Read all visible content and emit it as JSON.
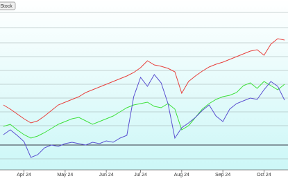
{
  "toolbar": {
    "button": "Stock"
  },
  "chart_data": {
    "type": "line",
    "categories": [
      null,
      null,
      null,
      "Apr 24",
      null,
      null,
      null,
      null,
      null,
      "May 24",
      null,
      null,
      null,
      null,
      null,
      "Jun 24",
      null,
      null,
      null,
      null,
      "Jul 24",
      null,
      null,
      null,
      null,
      null,
      "Aug 24",
      null,
      null,
      null,
      null,
      null,
      "Sep 24",
      null,
      null,
      null,
      null,
      null,
      "Oct 24",
      null,
      null,
      null
    ],
    "ylim": [
      0,
      100
    ],
    "series": [
      {
        "color": "#e8403c",
        "values": [
          39.2,
          36.8,
          34,
          31.2,
          28.8,
          30,
          32.8,
          36,
          39.2,
          40.8,
          42.4,
          44,
          46.4,
          48,
          49.6,
          51.2,
          52.8,
          54.4,
          56,
          58,
          60.8,
          64.8,
          62.4,
          61.6,
          60.4,
          58.4,
          46,
          52.8,
          56,
          58.8,
          61.2,
          62.8,
          64,
          65.6,
          67.2,
          68.8,
          70.4,
          71.2,
          68,
          74.4,
          77.6,
          76.8
        ]
      },
      {
        "color": "#3ee03a",
        "values": [
          26.8,
          28,
          24.8,
          22,
          20,
          21.2,
          23.2,
          25.6,
          28,
          29.6,
          31.2,
          32,
          30,
          28,
          29.6,
          31.2,
          32.8,
          35.2,
          37.6,
          39.2,
          40,
          40.8,
          38.4,
          37.6,
          40,
          36.8,
          24.8,
          27.2,
          32,
          36.8,
          40,
          42.4,
          44,
          44.8,
          46.4,
          50.4,
          52,
          48.8,
          52.8,
          50.4,
          48,
          51.2
        ]
      },
      {
        "color": "#5a4fd0",
        "values": [
          22,
          24.8,
          21.6,
          18,
          8.8,
          10.4,
          14.4,
          16,
          15.2,
          16.8,
          17.6,
          16.8,
          16,
          17.6,
          16.8,
          18.4,
          17.6,
          20,
          21.6,
          44,
          55.2,
          50,
          56.8,
          52,
          40,
          20,
          26,
          28.8,
          32,
          36,
          39.2,
          32.8,
          29.6,
          36.8,
          40,
          41.6,
          43.2,
          42.4,
          48,
          52.8,
          50,
          42
        ]
      }
    ]
  }
}
